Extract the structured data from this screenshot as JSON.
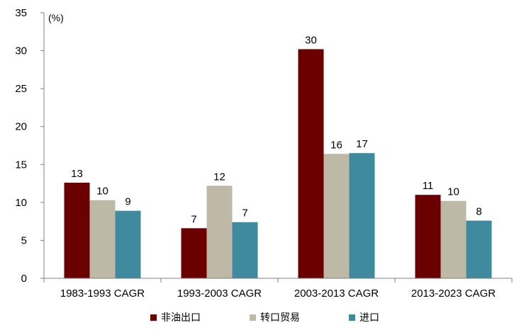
{
  "chart_data": {
    "type": "bar",
    "unit_label": "(%)",
    "ylim": [
      0,
      35
    ],
    "yticks": [
      "0",
      "5",
      "10",
      "15",
      "20",
      "25",
      "30",
      "35"
    ],
    "categories": [
      "1983-1993 CAGR",
      "1993-2003 CAGR",
      "2003-2013 CAGR",
      "2013-2023 CAGR"
    ],
    "series": [
      {
        "name": "非油出口",
        "color": "#6B0000",
        "values": [
          12.6,
          6.6,
          30.2,
          11.0
        ],
        "labels": [
          "13",
          "7",
          "30",
          "11"
        ]
      },
      {
        "name": "转口贸易",
        "color": "#BDB9A6",
        "values": [
          10.3,
          12.2,
          16.4,
          10.2
        ],
        "labels": [
          "10",
          "12",
          "16",
          "10"
        ]
      },
      {
        "name": "进口",
        "color": "#3F8A9E",
        "values": [
          8.9,
          7.4,
          16.5,
          7.6
        ],
        "labels": [
          "9",
          "7",
          "17",
          "8"
        ]
      }
    ],
    "legend_position": "bottom"
  }
}
